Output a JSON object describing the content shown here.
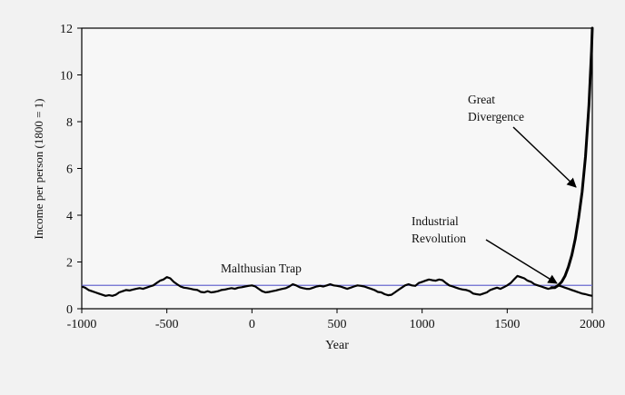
{
  "chart_data": {
    "type": "line",
    "xlabel": "Year",
    "ylabel": "Income per person (1800 = 1)",
    "xlim": [
      -1000,
      2000
    ],
    "ylim": [
      0,
      12
    ],
    "x_ticks": [
      -1000,
      -500,
      0,
      500,
      1000,
      1500,
      2000
    ],
    "y_ticks": [
      0,
      2,
      4,
      6,
      8,
      10,
      12
    ],
    "grid": false,
    "reference_line": {
      "y": 1.0,
      "color": "#6a6ad0"
    },
    "colors": {
      "line": "#000000",
      "background": "#f2f2f2",
      "plot_background": "#f7f7f7"
    },
    "series": [
      {
        "name": "Income per person",
        "x": [
          -1000,
          -980,
          -960,
          -940,
          -920,
          -900,
          -880,
          -860,
          -840,
          -820,
          -800,
          -780,
          -760,
          -740,
          -720,
          -700,
          -680,
          -660,
          -640,
          -620,
          -600,
          -580,
          -560,
          -540,
          -520,
          -500,
          -480,
          -460,
          -440,
          -420,
          -400,
          -380,
          -360,
          -340,
          -320,
          -300,
          -280,
          -260,
          -240,
          -220,
          -200,
          -180,
          -160,
          -140,
          -120,
          -100,
          -80,
          -60,
          -40,
          -20,
          0,
          20,
          40,
          60,
          80,
          100,
          120,
          140,
          160,
          180,
          200,
          220,
          240,
          260,
          280,
          300,
          320,
          340,
          360,
          380,
          400,
          420,
          440,
          460,
          480,
          500,
          520,
          540,
          560,
          580,
          600,
          620,
          640,
          660,
          680,
          700,
          720,
          740,
          760,
          780,
          800,
          820,
          840,
          860,
          880,
          900,
          920,
          940,
          960,
          980,
          1000,
          1020,
          1040,
          1060,
          1080,
          1100,
          1120,
          1140,
          1160,
          1180,
          1200,
          1220,
          1240,
          1260,
          1280,
          1300,
          1320,
          1340,
          1360,
          1380,
          1400,
          1420,
          1440,
          1460,
          1480,
          1500,
          1520,
          1540,
          1560,
          1580,
          1600,
          1620,
          1640,
          1660,
          1680,
          1700,
          1720,
          1740,
          1760,
          1780,
          1800,
          1820,
          1840,
          1860,
          1880,
          1900,
          1920,
          1940,
          1960,
          1980,
          2000
        ],
        "y": [
          0.95,
          0.9,
          0.8,
          0.75,
          0.7,
          0.65,
          0.6,
          0.55,
          0.58,
          0.55,
          0.6,
          0.7,
          0.75,
          0.8,
          0.78,
          0.82,
          0.85,
          0.88,
          0.85,
          0.9,
          0.95,
          1.0,
          1.1,
          1.2,
          1.25,
          1.35,
          1.3,
          1.15,
          1.05,
          0.95,
          0.9,
          0.88,
          0.85,
          0.82,
          0.8,
          0.72,
          0.7,
          0.75,
          0.7,
          0.72,
          0.75,
          0.8,
          0.82,
          0.85,
          0.88,
          0.85,
          0.9,
          0.92,
          0.95,
          0.98,
          1.0,
          0.95,
          0.85,
          0.75,
          0.7,
          0.72,
          0.75,
          0.78,
          0.82,
          0.85,
          0.88,
          0.95,
          1.05,
          1.0,
          0.92,
          0.88,
          0.85,
          0.85,
          0.9,
          0.95,
          0.98,
          0.95,
          1.0,
          1.05,
          1.0,
          0.98,
          0.95,
          0.9,
          0.85,
          0.9,
          0.95,
          1.0,
          0.98,
          0.95,
          0.9,
          0.85,
          0.8,
          0.72,
          0.7,
          0.62,
          0.58,
          0.6,
          0.7,
          0.8,
          0.9,
          1.0,
          1.05,
          1.0,
          0.98,
          1.1,
          1.15,
          1.2,
          1.25,
          1.22,
          1.2,
          1.25,
          1.22,
          1.1,
          1.0,
          0.95,
          0.9,
          0.85,
          0.82,
          0.8,
          0.75,
          0.65,
          0.62,
          0.6,
          0.65,
          0.7,
          0.8,
          0.85,
          0.9,
          0.85,
          0.92,
          1.0,
          1.1,
          1.25,
          1.4,
          1.35,
          1.3,
          1.2,
          1.15,
          1.05,
          1.0,
          0.95,
          0.9,
          0.85,
          0.88,
          0.92,
          1.0,
          0.95,
          0.9,
          0.85,
          0.8,
          0.75,
          0.7,
          0.65,
          0.62,
          0.58,
          0.55
        ]
      },
      {
        "name": "Great Divergence",
        "x": [
          1760,
          1780,
          1800,
          1820,
          1840,
          1860,
          1880,
          1900,
          1920,
          1940,
          1960,
          1980,
          1995,
          2000
        ],
        "y": [
          0.9,
          0.9,
          1.0,
          1.15,
          1.4,
          1.8,
          2.3,
          3.0,
          3.9,
          5.0,
          6.5,
          8.7,
          11.0,
          12.0
        ]
      }
    ],
    "annotations": [
      {
        "label_lines": [
          "Great",
          "Divergence"
        ],
        "target": {
          "x": 1960,
          "y": 5.2
        }
      },
      {
        "label_lines": [
          "Industrial",
          "Revolution"
        ],
        "target": {
          "x": 1770,
          "y": 1.05
        }
      },
      {
        "label_lines": [
          "Malthusian Trap"
        ]
      }
    ]
  }
}
